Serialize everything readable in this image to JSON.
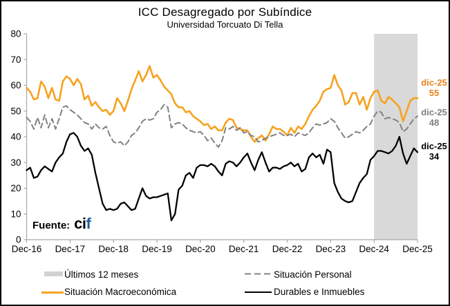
{
  "chart": {
    "title": "ICC Desagregado por Subíndice",
    "subtitle": "Universidad Torcuato Di Tella"
  },
  "source": {
    "prefix": "Fuente:",
    "brand_dark": "ci",
    "brand_blue": "f",
    "brand_blue_color": "#1F5C9E"
  },
  "annotations": [
    {
      "label": "dic-25",
      "value": "55",
      "color": "#E8821E"
    },
    {
      "label": "dic-25",
      "value": "48",
      "color": "#7F7F7F"
    },
    {
      "label": "dic-25",
      "value": "34",
      "color": "#000000"
    }
  ],
  "legend": [
    {
      "label": "Últimos 12 meses",
      "swatch": "box",
      "swatch_color": "#D2D2D2"
    },
    {
      "label": "Situación Personal",
      "swatch": "dashed",
      "swatch_color": "#808080"
    },
    {
      "label": "Situación Macroeconómica",
      "swatch": "solid",
      "swatch_color": "#F7A11E"
    },
    {
      "label": "Durables e Inmuebles",
      "swatch": "solid",
      "swatch_color": "#000000"
    }
  ],
  "chart_data": {
    "type": "line",
    "title": "ICC Desagregado por Subíndice",
    "subtitle": "Universidad Torcuato Di Tella",
    "frequency": "monthly",
    "x_start": "Dec-16",
    "x_end": "Dec-25",
    "x_tick_labels": [
      "Dec-16",
      "Dec-17",
      "Dec-18",
      "Dec-19",
      "Dec-20",
      "Dec-21",
      "Dec-22",
      "Dec-23",
      "Dec-24",
      "Dec-25"
    ],
    "y_ticks": [
      0,
      10,
      20,
      30,
      40,
      50,
      60,
      70,
      80
    ],
    "ylim": [
      0,
      80
    ],
    "grid": false,
    "legend_position": "bottom",
    "axis_color": "#A6A6A6",
    "shaded_region": {
      "label": "Últimos 12 meses",
      "from_month_index": 96,
      "to_month_index": 108,
      "from": "Dec-24",
      "to": "Dec-25",
      "color": "#D9D9D9"
    },
    "series": [
      {
        "name": "Situación Macroeconómica",
        "color": "#F7A11E",
        "style": "solid",
        "end_label": "dic-25 55",
        "values": [
          59,
          57.5,
          54.5,
          55,
          61.5,
          59.5,
          55,
          59,
          54.5,
          54,
          61.5,
          63.5,
          62.5,
          60,
          62.5,
          60.5,
          54.5,
          56,
          52,
          53.5,
          51.5,
          50,
          50.5,
          48.5,
          50,
          55,
          53,
          50,
          54,
          58.5,
          62,
          65.5,
          61.5,
          64,
          67.5,
          63,
          64,
          62,
          59.5,
          58,
          56.5,
          53,
          51.5,
          51.5,
          49.5,
          50,
          48,
          47,
          46,
          44.5,
          45,
          43,
          44,
          42.5,
          42.5,
          45.5,
          47,
          46.5,
          43.5,
          43,
          42.5,
          42.5,
          40,
          38,
          39.5,
          40.5,
          38.5,
          41,
          44,
          43,
          43,
          42,
          40.5,
          43.5,
          41.5,
          44,
          43,
          45,
          48,
          50.5,
          52,
          54,
          57.5,
          58.5,
          59,
          64,
          60,
          58,
          52.5,
          53.5,
          57,
          57,
          52.5,
          55.5,
          50.5,
          55,
          57.5,
          58,
          54,
          53,
          55.5,
          54.5,
          53,
          51.5,
          46,
          50,
          54,
          55,
          55
        ]
      },
      {
        "name": "Situación Personal",
        "color": "#808080",
        "style": "dashed",
        "end_label": "dic-25 48",
        "values": [
          47.5,
          46,
          43,
          47.5,
          43.5,
          48.5,
          43.5,
          47,
          43,
          47,
          51.5,
          52,
          50.5,
          49.5,
          48.5,
          47,
          45.5,
          45,
          43,
          45,
          43.5,
          43,
          44,
          40.5,
          38,
          37.5,
          38,
          36.5,
          38,
          40.5,
          41.5,
          43.5,
          46,
          47,
          46.5,
          47,
          49.5,
          50.5,
          52.5,
          51.5,
          43.5,
          45,
          45.5,
          45,
          43.5,
          42.5,
          42,
          41.5,
          42,
          40.5,
          38.5,
          39.5,
          37.5,
          36,
          38.5,
          43.5,
          43,
          44,
          42.5,
          43.5,
          41.5,
          42,
          40.5,
          40,
          38,
          38.5,
          39.5,
          40,
          40.5,
          41,
          41.5,
          40.5,
          40.5,
          41,
          40,
          41.5,
          41,
          40.5,
          41.5,
          43.5,
          45,
          44.5,
          45,
          45.5,
          47,
          46,
          43.5,
          41.5,
          39.5,
          40,
          41,
          42,
          41.5,
          42.5,
          44,
          45,
          48,
          50,
          49.5,
          47,
          47.5,
          47,
          46.5,
          45.5,
          42,
          43,
          45,
          47,
          48
        ]
      },
      {
        "name": "Durables e Inmuebles",
        "color": "#000000",
        "style": "solid",
        "end_label": "dic-25 34",
        "values": [
          27,
          28,
          24,
          24.5,
          27,
          28.5,
          27.5,
          26.5,
          30,
          32,
          33.5,
          38,
          41,
          41.5,
          40,
          36.5,
          34.5,
          35.5,
          33,
          26,
          20,
          14,
          11.5,
          12,
          11.5,
          12,
          14,
          14.5,
          13,
          11.5,
          12,
          16,
          20,
          17,
          16,
          16.5,
          16.5,
          17,
          17.5,
          18,
          7.5,
          10,
          19.5,
          21,
          25,
          26,
          24,
          28,
          29,
          29,
          28.5,
          29.5,
          28.5,
          26.5,
          25,
          29.5,
          30.5,
          30,
          28.5,
          30,
          32,
          33.5,
          30,
          27,
          31,
          34,
          30,
          26.5,
          28,
          28,
          27.5,
          28.5,
          29,
          30,
          28.5,
          29.5,
          26.5,
          27.5,
          32,
          33.5,
          32,
          33,
          29.5,
          35,
          34,
          22,
          18.5,
          16,
          15,
          14.5,
          15,
          18.5,
          22,
          24,
          25.5,
          31,
          32.5,
          34.5,
          34.5,
          34,
          33.5,
          34.5,
          36.5,
          40,
          33.5,
          29.5,
          32.5,
          35.5,
          34
        ]
      }
    ]
  }
}
